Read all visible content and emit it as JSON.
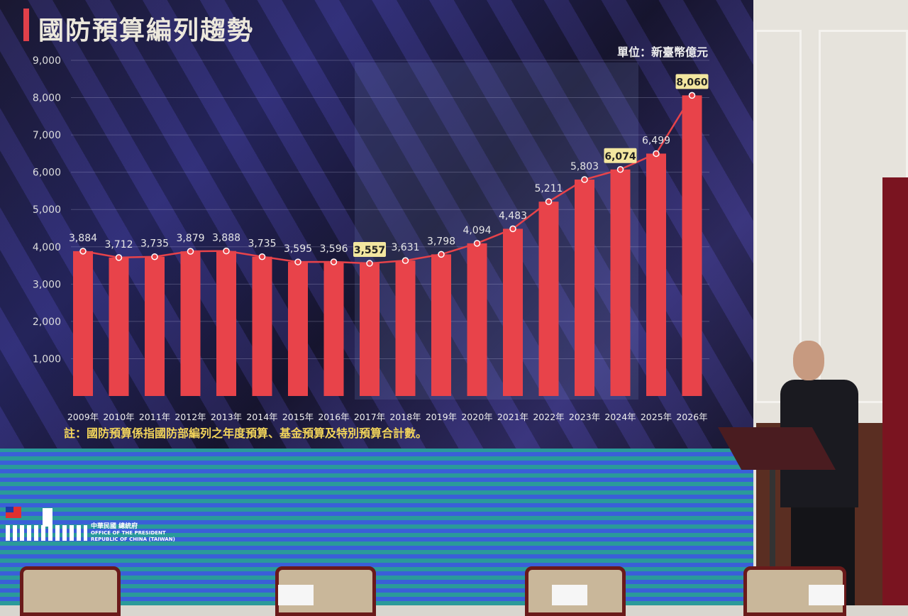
{
  "slide": {
    "title": "國防預算編列趨勢",
    "unit": "單位：新臺幣億元",
    "note": "註：國防預算係指國防部編列之年度預算、基金預算及特別預算合計數。"
  },
  "logo": {
    "name_zh": "中華民國 總統府",
    "name_en_1": "OFFICE OF THE PRESIDENT",
    "name_en_2": "REPUBLIC OF CHINA (TAIWAN)"
  },
  "chart_data": {
    "type": "bar",
    "title": "國防預算編列趨勢",
    "ylabel": "單位：新臺幣億元",
    "ylim": [
      0,
      9000
    ],
    "yticks": [
      "1,000",
      "2,000",
      "3,000",
      "4,000",
      "5,000",
      "6,000",
      "7,000",
      "8,000",
      "9,000"
    ],
    "yticks_values": [
      1000,
      2000,
      3000,
      4000,
      5000,
      6000,
      7000,
      8000,
      9000
    ],
    "grid": true,
    "categories": [
      "2009年",
      "2010年",
      "2011年",
      "2012年",
      "2013年",
      "2014年",
      "2015年",
      "2016年",
      "2017年",
      "2018年",
      "2019年",
      "2020年",
      "2021年",
      "2022年",
      "2023年",
      "2024年",
      "2025年",
      "2026年"
    ],
    "values": [
      3884,
      3712,
      3735,
      3879,
      3888,
      3735,
      3595,
      3596,
      3557,
      3631,
      3798,
      4094,
      4483,
      5211,
      5803,
      6074,
      6499,
      8060
    ],
    "data_labels": [
      "3,884",
      "3,712",
      "3,735",
      "3,879",
      "3,888",
      "3,735",
      "3,595",
      "3,596",
      "3,557",
      "3,631",
      "3,798",
      "4,094",
      "4,483",
      "5,211",
      "5,803",
      "6,074",
      "6,499",
      "8,060"
    ],
    "highlighted": [
      "2017年",
      "2024年",
      "2026年"
    ],
    "overlay": "line with markers",
    "colors": {
      "bar": "#e8434a",
      "line": "#e8434a",
      "highlight_box": "#f3e7a0",
      "label": "#e6e6e6"
    }
  }
}
